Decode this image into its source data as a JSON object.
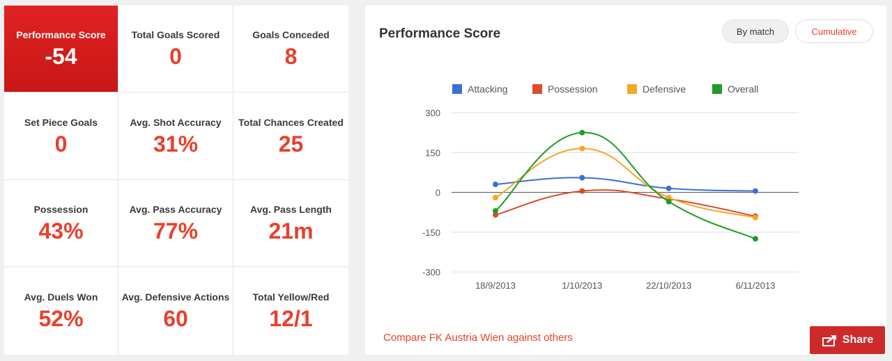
{
  "stats": [
    {
      "label": "Performance Score",
      "value": "-54",
      "highlight": true
    },
    {
      "label": "Total Goals Scored",
      "value": "0"
    },
    {
      "label": "Goals Conceded",
      "value": "8"
    },
    {
      "label": "Set Piece Goals",
      "value": "0"
    },
    {
      "label": "Avg. Shot Accuracy",
      "value": "31%"
    },
    {
      "label": "Total Chances Created",
      "value": "25"
    },
    {
      "label": "Possession",
      "value": "43%"
    },
    {
      "label": "Avg. Pass Accuracy",
      "value": "77%"
    },
    {
      "label": "Avg. Pass Length",
      "value": "21m"
    },
    {
      "label": "Avg. Duels Won",
      "value": "52%"
    },
    {
      "label": "Avg. Defensive Actions",
      "value": "60"
    },
    {
      "label": "Total Yellow/Red",
      "value": "12/1"
    }
  ],
  "panel": {
    "title": "Performance Score",
    "buttons": {
      "by_match": "By match",
      "cumulative": "Cumulative"
    },
    "compare_link": "Compare FK Austria Wien against others",
    "share_label": "Share",
    "share_icon": "share-icon"
  },
  "colors": {
    "accent": "#e8402b",
    "highlight_bg": "#d51f1f",
    "share_bg": "#cf2a2a"
  },
  "chart_data": {
    "type": "line",
    "x": [
      "18/9/2013",
      "1/10/2013",
      "22/10/2013",
      "6/11/2013"
    ],
    "yticks": [
      300,
      150,
      0,
      -150,
      -300
    ],
    "ylim": [
      -300,
      300
    ],
    "legend_position": "top",
    "series": [
      {
        "name": "Attacking",
        "color": "#3b6fd6",
        "values": [
          30,
          55,
          15,
          5
        ]
      },
      {
        "name": "Possession",
        "color": "#dd4b2a",
        "values": [
          -85,
          5,
          -25,
          -90
        ]
      },
      {
        "name": "Defensive",
        "color": "#f5a623",
        "values": [
          -20,
          165,
          -20,
          -95
        ]
      },
      {
        "name": "Overall",
        "color": "#1f9a2b",
        "values": [
          -70,
          225,
          -35,
          -175
        ]
      }
    ]
  }
}
